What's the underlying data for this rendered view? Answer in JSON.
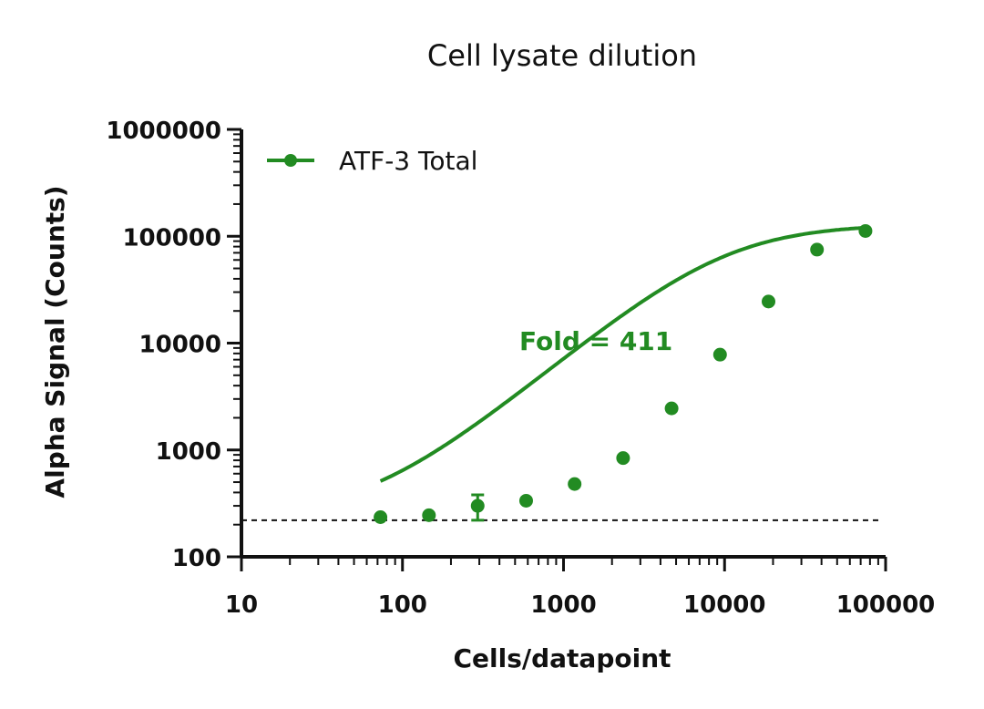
{
  "chart_data": {
    "type": "scatter",
    "title": "Cell lysate dilution",
    "xlabel": "Cells/datapoint",
    "ylabel": "Alpha Signal (Counts)",
    "xscale": "log",
    "yscale": "log",
    "xlim": [
      10,
      100000
    ],
    "ylim": [
      100,
      1000000
    ],
    "xticks": [
      10,
      100,
      1000,
      10000,
      100000
    ],
    "xtick_labels": [
      "10",
      "100",
      "1000",
      "10000",
      "100000"
    ],
    "yticks": [
      100,
      1000,
      10000,
      100000,
      1000000
    ],
    "ytick_labels": [
      "100",
      "1000",
      "10000",
      "100000",
      "1000000"
    ],
    "grid": false,
    "legend_position": "top-left",
    "series": [
      {
        "name": "ATF-3 Total",
        "color": "#228b22",
        "x": [
          73,
          146,
          293,
          586,
          1172,
          2344,
          4688,
          9375,
          18750,
          37500,
          75000
        ],
        "y": [
          235,
          245,
          300,
          335,
          480,
          840,
          2450,
          7800,
          24500,
          75000,
          112000
        ],
        "y_err": [
          0,
          0,
          80,
          0,
          0,
          0,
          0,
          0,
          0,
          0,
          0
        ],
        "fit": {
          "bottom": 235,
          "top": 130000,
          "ec50": 10000,
          "hill": 1.25
        }
      }
    ],
    "baseline": {
      "y": 220,
      "style": "dashed"
    },
    "annotations": [
      {
        "text": "Fold = 411",
        "x": 5000,
        "y": 10000
      }
    ]
  }
}
